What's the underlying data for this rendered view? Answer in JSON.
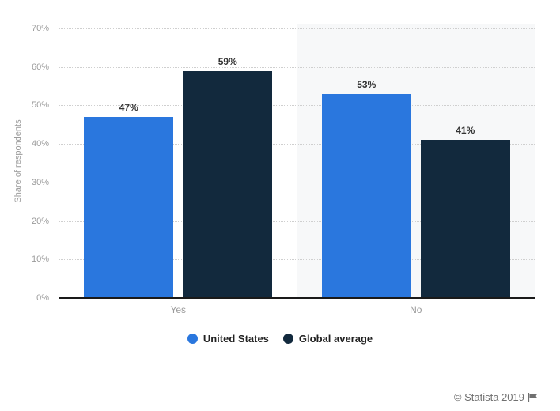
{
  "chart_data": {
    "type": "bar",
    "categories": [
      "Yes",
      "No"
    ],
    "series": [
      {
        "name": "United States",
        "color": "#2a77de",
        "values": [
          47,
          53
        ],
        "labels": [
          "47%",
          "53%"
        ]
      },
      {
        "name": "Global average",
        "color": "#12293d",
        "values": [
          59,
          41
        ],
        "labels": [
          "59%",
          "41%"
        ]
      }
    ],
    "ylabel": "Share of respondents",
    "ylim": [
      0,
      70
    ],
    "yticks": [
      0,
      10,
      20,
      30,
      40,
      50,
      60,
      70
    ],
    "ytick_labels": [
      "0%",
      "10%",
      "20%",
      "30%",
      "40%",
      "50%",
      "60%",
      "70%"
    ],
    "grid": "horizontal-dotted",
    "legend_position": "bottom",
    "highlight_band_category": "No"
  },
  "footer": {
    "credit": "© Statista 2019",
    "flag_icon": "statista-flag"
  },
  "colors": {
    "series_us": "#2a77de",
    "series_global": "#12293d",
    "gridline": "#cfcfcf",
    "band": "#f7f8f9",
    "axis_line": "#1a1a1a",
    "axis_text": "#9b9b9b",
    "value_label": "#333333",
    "legend_text": "#222222",
    "credit_text": "#707070"
  }
}
